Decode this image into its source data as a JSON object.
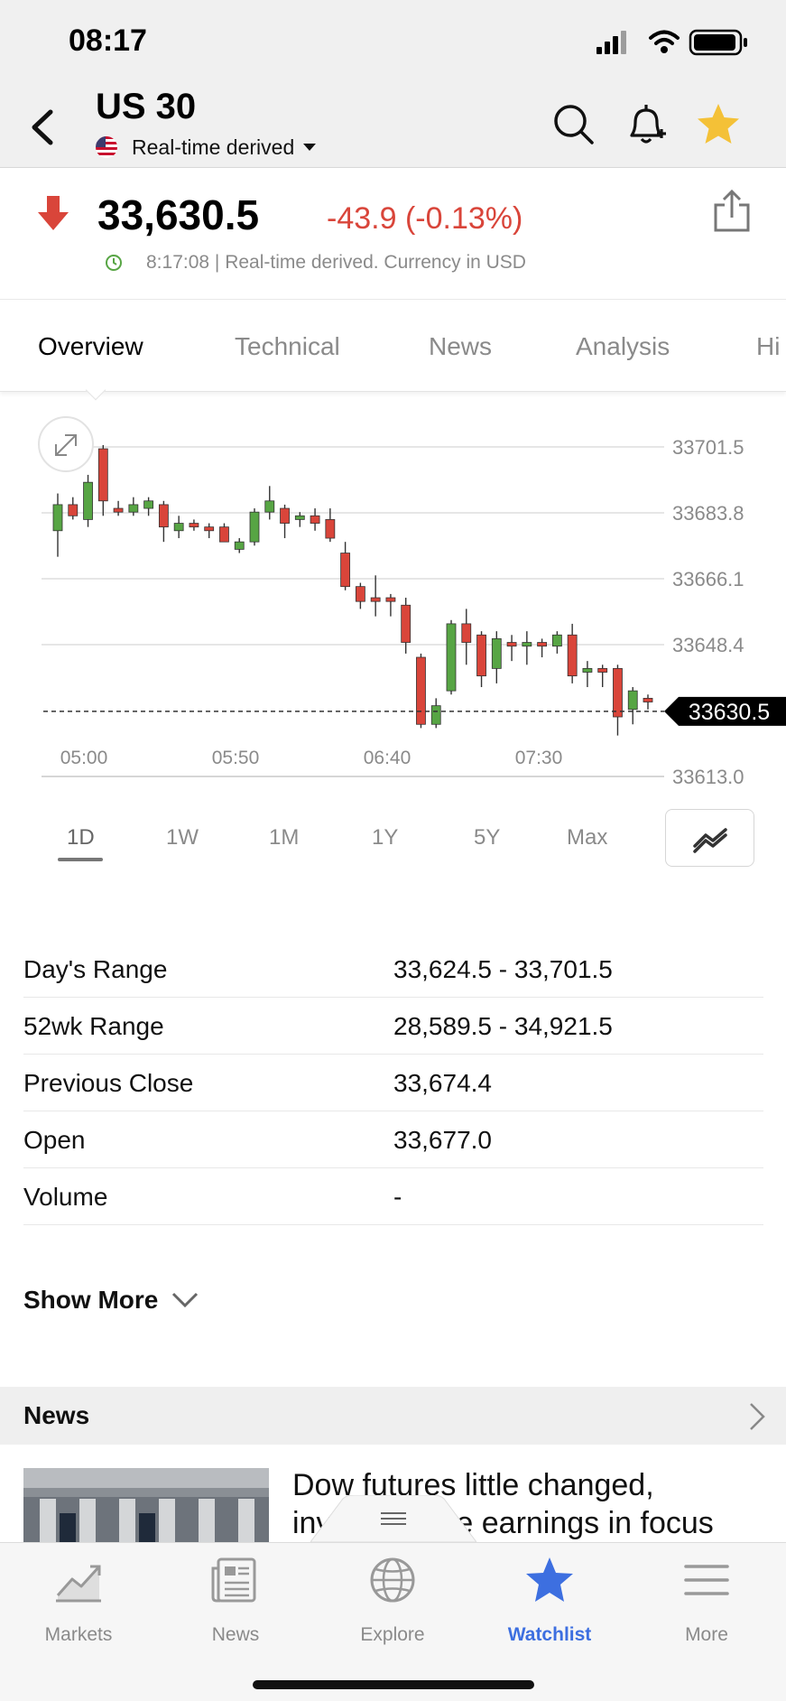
{
  "status_bar": {
    "time": "08:17"
  },
  "header": {
    "title": "US 30",
    "subtitle": "Real-time derived"
  },
  "quote": {
    "price": "33,630.5",
    "change": "-43.9 (-0.13%)",
    "meta": "8:17:08 | Real-time derived. Currency in USD"
  },
  "tabs": [
    "Overview",
    "Technical",
    "News",
    "Analysis",
    "Hi"
  ],
  "chart_data": {
    "type": "candlestick",
    "y_ticks": [
      "33701.5",
      "33683.8",
      "33666.1",
      "33648.4",
      "33613.0"
    ],
    "x_ticks": [
      "05:00",
      "05:50",
      "06:40",
      "07:30"
    ],
    "ylim": [
      33613.0,
      33701.5
    ],
    "current_label": "33630.5",
    "current_value": 33630.5,
    "candles": [
      {
        "o": 33679,
        "h": 33689,
        "l": 33672,
        "c": 33686
      },
      {
        "o": 33686,
        "h": 33688,
        "l": 33682,
        "c": 33683
      },
      {
        "o": 33682,
        "h": 33694,
        "l": 33680,
        "c": 33692
      },
      {
        "o": 33701,
        "h": 33702,
        "l": 33683,
        "c": 33687
      },
      {
        "o": 33685,
        "h": 33687,
        "l": 33683,
        "c": 33684
      },
      {
        "o": 33684,
        "h": 33688,
        "l": 33683,
        "c": 33686
      },
      {
        "o": 33685,
        "h": 33688,
        "l": 33683,
        "c": 33687
      },
      {
        "o": 33686,
        "h": 33687,
        "l": 33676,
        "c": 33680
      },
      {
        "o": 33679,
        "h": 33683,
        "l": 33677,
        "c": 33681
      },
      {
        "o": 33681,
        "h": 33682,
        "l": 33679,
        "c": 33680
      },
      {
        "o": 33680,
        "h": 33681,
        "l": 33677,
        "c": 33679
      },
      {
        "o": 33680,
        "h": 33681,
        "l": 33676,
        "c": 33676
      },
      {
        "o": 33674,
        "h": 33677,
        "l": 33673,
        "c": 33676
      },
      {
        "o": 33676,
        "h": 33685,
        "l": 33675,
        "c": 33684
      },
      {
        "o": 33684,
        "h": 33691,
        "l": 33682,
        "c": 33687
      },
      {
        "o": 33685,
        "h": 33686,
        "l": 33677,
        "c": 33681
      },
      {
        "o": 33682,
        "h": 33684,
        "l": 33680,
        "c": 33683
      },
      {
        "o": 33683,
        "h": 33685,
        "l": 33679,
        "c": 33681
      },
      {
        "o": 33682,
        "h": 33685,
        "l": 33676,
        "c": 33677
      },
      {
        "o": 33673,
        "h": 33676,
        "l": 33663,
        "c": 33664
      },
      {
        "o": 33664,
        "h": 33665,
        "l": 33658,
        "c": 33660
      },
      {
        "o": 33661,
        "h": 33667,
        "l": 33656,
        "c": 33660
      },
      {
        "o": 33661,
        "h": 33662,
        "l": 33656,
        "c": 33660
      },
      {
        "o": 33659,
        "h": 33661,
        "l": 33646,
        "c": 33649
      },
      {
        "o": 33645,
        "h": 33646,
        "l": 33626,
        "c": 33627
      },
      {
        "o": 33627,
        "h": 33634,
        "l": 33626,
        "c": 33632
      },
      {
        "o": 33636,
        "h": 33655,
        "l": 33635,
        "c": 33654
      },
      {
        "o": 33654,
        "h": 33658,
        "l": 33643,
        "c": 33649
      },
      {
        "o": 33651,
        "h": 33652,
        "l": 33637,
        "c": 33640
      },
      {
        "o": 33642,
        "h": 33652,
        "l": 33638,
        "c": 33650
      },
      {
        "o": 33649,
        "h": 33651,
        "l": 33644,
        "c": 33648
      },
      {
        "o": 33648,
        "h": 33652,
        "l": 33643,
        "c": 33649
      },
      {
        "o": 33649,
        "h": 33650,
        "l": 33645,
        "c": 33648
      },
      {
        "o": 33648,
        "h": 33652,
        "l": 33646,
        "c": 33651
      },
      {
        "o": 33651,
        "h": 33654,
        "l": 33638,
        "c": 33640
      },
      {
        "o": 33641,
        "h": 33644,
        "l": 33637,
        "c": 33642
      },
      {
        "o": 33642,
        "h": 33643,
        "l": 33637,
        "c": 33641
      },
      {
        "o": 33642,
        "h": 33643,
        "l": 33624,
        "c": 33629
      },
      {
        "o": 33631,
        "h": 33637,
        "l": 33627,
        "c": 33636
      },
      {
        "o": 33634,
        "h": 33635,
        "l": 33631,
        "c": 33633
      }
    ],
    "colors": {
      "up": "#57a544",
      "down": "#d9453a"
    }
  },
  "periods": [
    "1D",
    "1W",
    "1M",
    "1Y",
    "5Y",
    "Max"
  ],
  "stats": [
    {
      "label": "Day's Range",
      "value": "33,624.5 - 33,701.5"
    },
    {
      "label": "52wk Range",
      "value": "28,589.5 - 34,921.5"
    },
    {
      "label": "Previous Close",
      "value": "33,674.4"
    },
    {
      "label": "Open",
      "value": "33,677.0"
    },
    {
      "label": "Volume",
      "value": "-"
    }
  ],
  "show_more": "Show More",
  "news": {
    "title": "News",
    "headline": "Dow futures little changed, investors eye earnings in focus"
  },
  "tabbar": [
    {
      "label": "Markets",
      "icon": "markets-icon"
    },
    {
      "label": "News",
      "icon": "news-icon"
    },
    {
      "label": "Explore",
      "icon": "globe-icon"
    },
    {
      "label": "Watchlist",
      "icon": "star-icon"
    },
    {
      "label": "More",
      "icon": "menu-icon"
    }
  ],
  "colors": {
    "accent": "#3d6fe0",
    "down": "#d9453a",
    "up": "#57a544",
    "star": "#f4c137"
  }
}
